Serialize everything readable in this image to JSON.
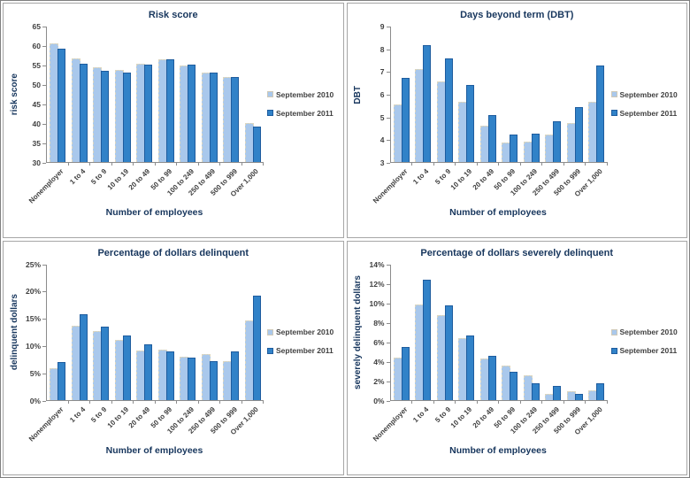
{
  "colors": {
    "series_2010_fill": "#A9C8EC",
    "series_2010_border": "#DCD6C0",
    "series_2011_fill": "#3182C8",
    "series_2011_border": "#1E5C9E",
    "axis_line": "#8C8C8C",
    "tick_text": "#3F3F3F",
    "title_text": "#17365D",
    "panel_border": "#A6A6A6"
  },
  "chart_data": [
    {
      "type": "bar",
      "title": "Risk score",
      "xlabel": "Number of employees",
      "ylabel": "risk score",
      "ylim": [
        30,
        65
      ],
      "ystep": 5,
      "percent": false,
      "grid": false,
      "legend_position": "right",
      "categories": [
        "Nonemployer",
        "1 to 4",
        "5 to 9",
        "10 to 19",
        "20 to 49",
        "50 to 99",
        "100 to 249",
        "250 to 499",
        "500 to 999",
        "Over 1,000"
      ],
      "series": [
        {
          "name": "September 2010",
          "values": [
            60.5,
            56.6,
            54.3,
            53.7,
            55.2,
            56.3,
            54.8,
            53.0,
            51.8,
            40.0
          ]
        },
        {
          "name": "September 2011",
          "values": [
            59.2,
            55.3,
            53.5,
            52.9,
            54.9,
            56.4,
            55.0,
            52.9,
            51.8,
            39.0
          ]
        }
      ]
    },
    {
      "type": "bar",
      "title": "Days beyond term (DBT)",
      "xlabel": "Number of employees",
      "ylabel": "DBT",
      "ylim": [
        3,
        9
      ],
      "ystep": 1,
      "percent": false,
      "grid": false,
      "legend_position": "right",
      "categories": [
        "Nonemployer",
        "1 to 4",
        "5 to 9",
        "10 to 19",
        "20 to 49",
        "50 to 99",
        "100 to 249",
        "250 to 499",
        "500 to 999",
        "Over 1,000"
      ],
      "series": [
        {
          "name": "September 2010",
          "values": [
            5.55,
            7.1,
            6.55,
            5.65,
            4.6,
            3.85,
            3.9,
            4.2,
            4.7,
            5.65
          ]
        },
        {
          "name": "September 2011",
          "values": [
            6.7,
            8.15,
            7.55,
            6.4,
            5.05,
            4.2,
            4.25,
            4.8,
            5.4,
            7.25
          ]
        }
      ]
    },
    {
      "type": "bar",
      "title": "Percentage of dollars delinquent",
      "xlabel": "Number of employees",
      "ylabel": "delinquent dollars",
      "ylim": [
        0,
        25
      ],
      "ystep": 5,
      "percent": true,
      "grid": false,
      "legend_position": "right",
      "categories": [
        "Nonemployer",
        "1 to 4",
        "5 to 9",
        "10 to 19",
        "20 to 49",
        "50 to 99",
        "100 to 249",
        "250 to 499",
        "500 to 999",
        "Over 1,000"
      ],
      "series": [
        {
          "name": "September 2010",
          "values": [
            5.8,
            13.5,
            12.6,
            11.0,
            9.0,
            9.2,
            7.8,
            8.4,
            7.0,
            14.5
          ]
        },
        {
          "name": "September 2011",
          "values": [
            6.9,
            15.6,
            13.4,
            11.8,
            10.1,
            8.9,
            7.7,
            7.1,
            8.8,
            19.1
          ]
        }
      ]
    },
    {
      "type": "bar",
      "title": "Percentage of dollars severely delinquent",
      "xlabel": "Number of employees",
      "ylabel": "severely delinquent dollars",
      "ylim": [
        0,
        14
      ],
      "ystep": 2,
      "percent": true,
      "grid": false,
      "legend_position": "right",
      "categories": [
        "Nonemployer",
        "1 to 4",
        "5 to 9",
        "10 to 19",
        "20 to 49",
        "50 to 99",
        "100 to 249",
        "250 to 499",
        "500 to 999",
        "Over 1,000"
      ],
      "series": [
        {
          "name": "September 2010",
          "values": [
            4.3,
            9.8,
            8.7,
            6.3,
            4.2,
            3.5,
            2.5,
            0.6,
            0.9,
            1.0
          ]
        },
        {
          "name": "September 2011",
          "values": [
            5.4,
            12.3,
            9.7,
            6.6,
            4.5,
            2.9,
            1.7,
            1.4,
            0.6,
            1.7
          ]
        }
      ]
    }
  ]
}
